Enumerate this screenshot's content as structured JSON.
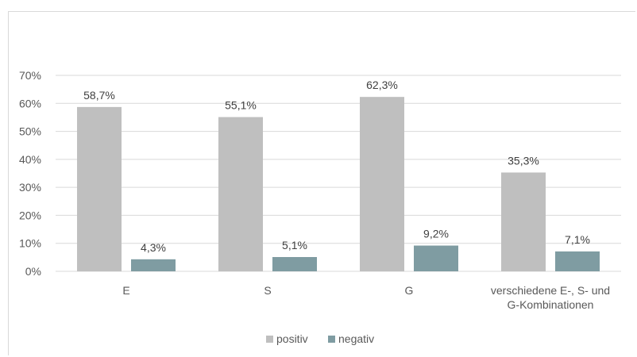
{
  "chart_data": {
    "type": "bar",
    "categories": [
      [
        "E"
      ],
      [
        "S"
      ],
      [
        "G"
      ],
      [
        "verschiedene E-, S- und",
        "G-Kombinationen"
      ]
    ],
    "series": [
      {
        "name": "positiv",
        "values": [
          58.7,
          55.1,
          62.3,
          35.3
        ],
        "labels": [
          "58,7%",
          "55,1%",
          "62,3%",
          "35,3%"
        ],
        "color": "#bfbfbf"
      },
      {
        "name": "negativ",
        "values": [
          4.3,
          5.1,
          9.2,
          7.1
        ],
        "labels": [
          "4,3%",
          "5,1%",
          "9,2%",
          "7,1%"
        ],
        "color": "#7f9ca2"
      }
    ],
    "yticks": [
      "0%",
      "10%",
      "20%",
      "30%",
      "40%",
      "50%",
      "60%",
      "70%"
    ],
    "ylim": [
      0,
      70
    ],
    "grid": true,
    "legend": "bottom"
  }
}
